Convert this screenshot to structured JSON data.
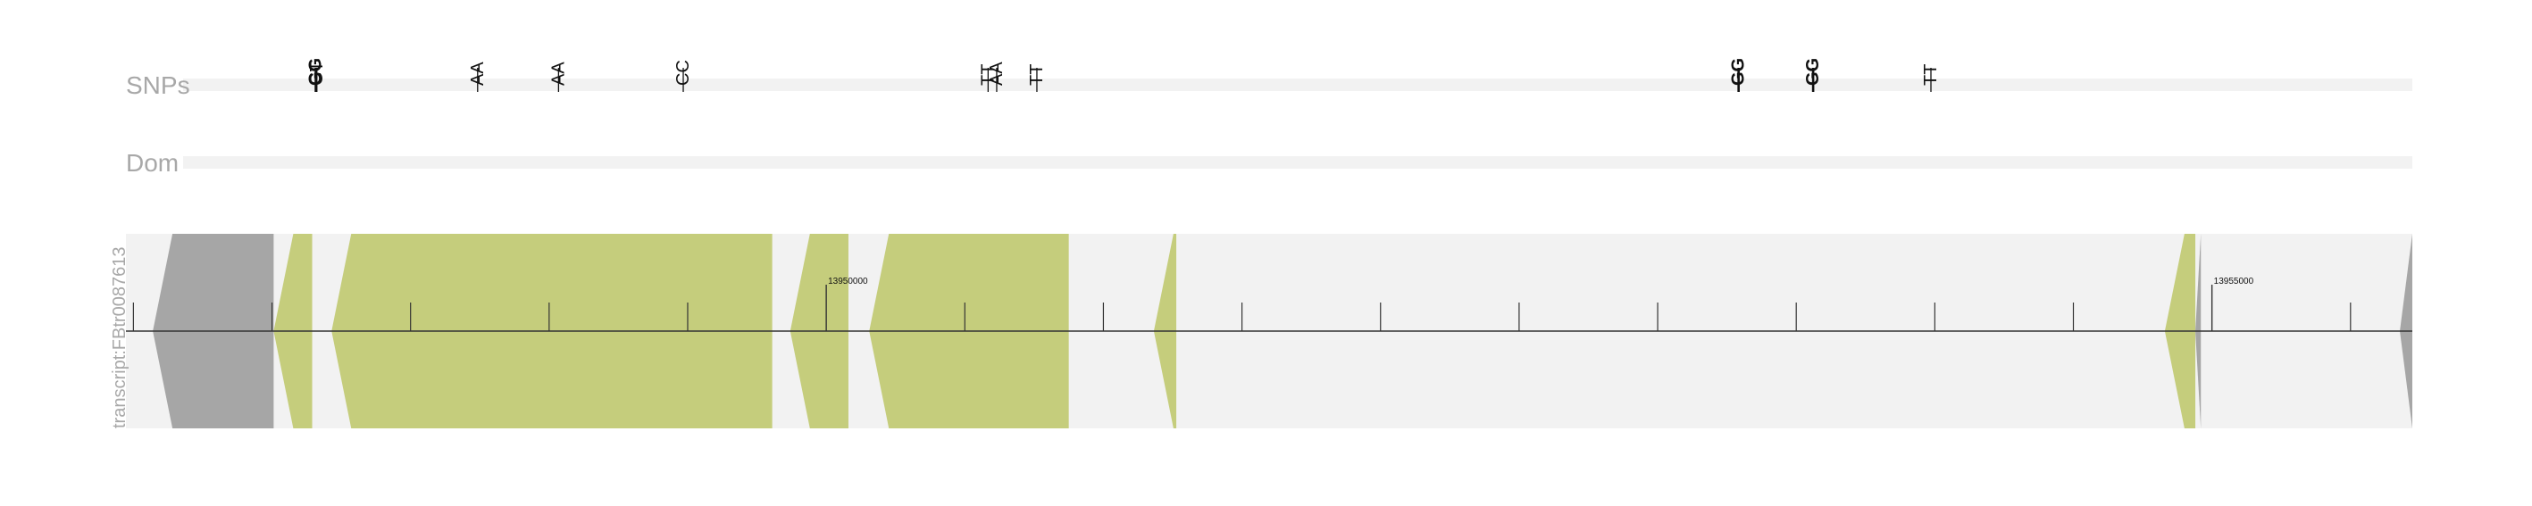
{
  "tracks": {
    "snps_label": "SNPs",
    "dom_label": "Dom",
    "transcript_label": "transcript:FBtr0087613"
  },
  "colors": {
    "track_bg": "#f2f2f2",
    "exon_coding": "#c5cd7c",
    "exon_utr": "#a6a6a6",
    "axis": "#333333",
    "snp_line": "#111111"
  },
  "genome": {
    "start": 13947473,
    "end": 13955723,
    "strand": "-"
  },
  "axis": {
    "major_ticks": [
      {
        "pos": 13950000,
        "label": "13950000"
      },
      {
        "pos": 13955000,
        "label": "13955000"
      }
    ],
    "minor_step": 500
  },
  "snps": [
    {
      "pos": 13948158,
      "label": "GG",
      "bold": true
    },
    {
      "pos": 13948162,
      "label": "GT",
      "bold": false
    },
    {
      "pos": 13948742,
      "label": "AA",
      "bold": false
    },
    {
      "pos": 13949034,
      "label": "AA",
      "bold": false
    },
    {
      "pos": 13949484,
      "label": "CC",
      "bold": false
    },
    {
      "pos": 13950584,
      "label": "TT",
      "bold": false
    },
    {
      "pos": 13950615,
      "label": "AA",
      "bold": false
    },
    {
      "pos": 13950760,
      "label": "TT",
      "bold": false
    },
    {
      "pos": 13953292,
      "label": "GG",
      "bold": true
    },
    {
      "pos": 13953561,
      "label": "GG",
      "bold": true
    },
    {
      "pos": 13953986,
      "label": "TT",
      "bold": false
    }
  ],
  "exons": [
    {
      "start": 13947570,
      "end": 13948006,
      "kind": "utr"
    },
    {
      "start": 13948006,
      "end": 13948145,
      "kind": "cds"
    },
    {
      "start": 13948215,
      "end": 13949805,
      "kind": "cds"
    },
    {
      "start": 13949870,
      "end": 13950080,
      "kind": "cds"
    },
    {
      "start": 13950155,
      "end": 13950875,
      "kind": "cds"
    },
    {
      "start": 13951182,
      "end": 13951263,
      "kind": "cds"
    },
    {
      "start": 13954830,
      "end": 13954940,
      "kind": "cds"
    },
    {
      "start": 13954940,
      "end": 13954960,
      "kind": "utr"
    },
    {
      "start": 13955678,
      "end": 13955723,
      "kind": "utr"
    }
  ]
}
